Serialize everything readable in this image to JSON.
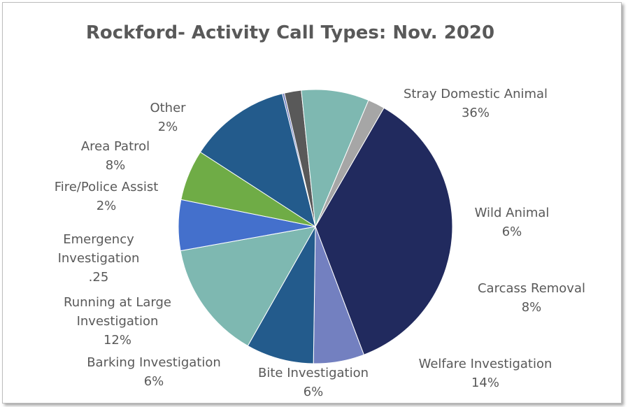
{
  "chart_data": {
    "type": "pie",
    "title": "Rockford- Activity Call Types: Nov. 2020",
    "start_angle_deg": -60,
    "slices": [
      {
        "name": "Stray Domestic Animal",
        "value": 36,
        "display": "36%",
        "color": "#212a5e"
      },
      {
        "name": "Wild Animal",
        "value": 6,
        "display": "6%",
        "color": "#7380c0"
      },
      {
        "name": "Carcass Removal",
        "value": 8,
        "display": "8%",
        "color": "#235b8c"
      },
      {
        "name": "Welfare Investigation",
        "value": 14,
        "display": "14%",
        "color": "#7eb8b1"
      },
      {
        "name": "Bite Investigation",
        "value": 6,
        "display": "6%",
        "color": "#4470cc"
      },
      {
        "name": "Barking Investigation",
        "value": 6,
        "display": "6%",
        "color": "#6fac46"
      },
      {
        "name": "Running at Large Investigation",
        "value": 12,
        "display": "12%",
        "color": "#235b8c"
      },
      {
        "name": "Emergency Investigation",
        "value": 0.25,
        "display": ".25",
        "color": "#7380c0"
      },
      {
        "name": "Fire/Police Assist",
        "value": 2,
        "display": "2%",
        "color": "#595959"
      },
      {
        "name": "Area Patrol",
        "value": 8,
        "display": "8%",
        "color": "#7eb8b1"
      },
      {
        "name": "Other",
        "value": 2,
        "display": "2%",
        "color": "#a6a6a6"
      }
    ]
  }
}
